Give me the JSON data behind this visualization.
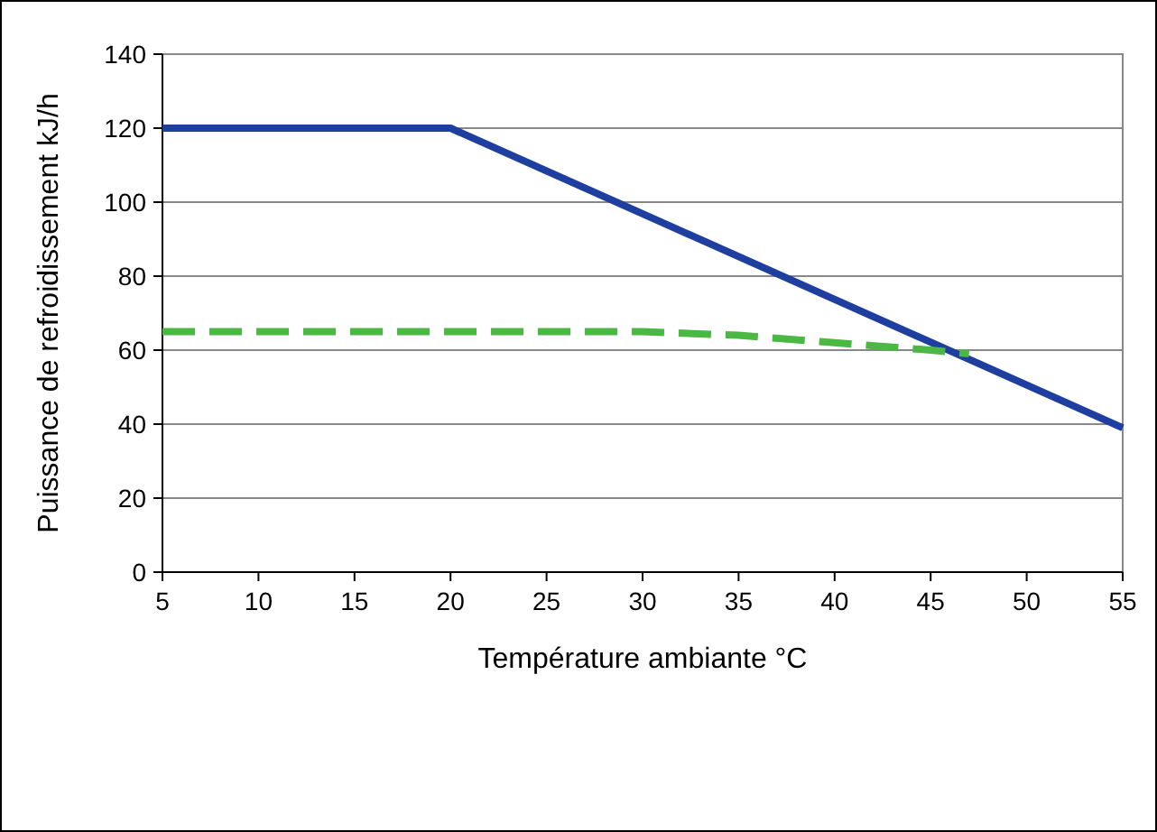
{
  "chart_data": {
    "type": "line",
    "xlabel": "Température ambiante °C",
    "ylabel": "Puissance de refroidissement kJ/h",
    "xlim": [
      5,
      55
    ],
    "xticks": [
      5,
      10,
      15,
      20,
      25,
      30,
      35,
      40,
      45,
      50,
      55
    ],
    "ylim": [
      0,
      140
    ],
    "yticks": [
      0,
      20,
      40,
      60,
      80,
      100,
      120,
      140
    ],
    "grid": "y",
    "series": [
      {
        "color": "#1f3fa0",
        "x": [
          5,
          20,
          55
        ],
        "values": [
          120,
          120,
          39
        ],
        "line_style": "solid"
      },
      {
        "color": "#4cb844",
        "x": [
          5,
          30,
          35,
          40,
          45,
          47
        ],
        "values": [
          65,
          65,
          64,
          62,
          60,
          59
        ],
        "line_style": "dashed"
      }
    ]
  }
}
